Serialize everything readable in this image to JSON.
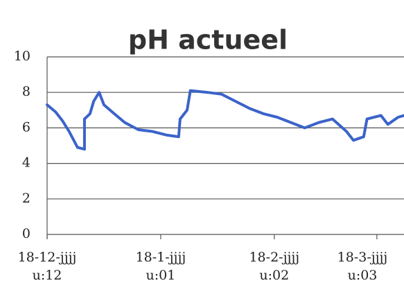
{
  "chart_data": {
    "type": "line",
    "title": "pH actueel",
    "x": [
      0,
      2.3,
      4.2,
      6.0,
      8.3,
      10.2,
      10.2,
      11.7,
      12.7,
      14.2,
      15.5,
      18.3,
      21.2,
      24.9,
      28.7,
      32.5,
      35.9,
      36.3,
      38.2,
      39.1,
      43.8,
      47.6,
      51.4,
      55.2,
      59.0,
      62.8,
      66.6,
      70.3,
      74.1,
      77.9,
      81.7,
      83.6,
      86.4,
      87.3,
      91.1,
      93.0,
      95.8,
      97.4
    ],
    "series": [
      {
        "name": "pH",
        "color": "#3b63c9",
        "values": [
          7.3,
          6.9,
          6.4,
          5.8,
          4.9,
          4.8,
          6.5,
          6.8,
          7.5,
          8.0,
          7.3,
          6.8,
          6.3,
          5.9,
          5.8,
          5.6,
          5.5,
          6.5,
          7.0,
          8.1,
          8.0,
          7.9,
          7.5,
          7.1,
          6.8,
          6.6,
          6.3,
          6.0,
          6.3,
          6.5,
          5.8,
          5.3,
          5.5,
          6.5,
          6.7,
          6.2,
          6.6,
          6.7
        ]
      }
    ],
    "xlim": [
      0,
      97.4
    ],
    "xticks": [
      {
        "value": 0,
        "label": "18-12-jjjj u:12"
      },
      {
        "value": 31,
        "label": "18-1-jjjj u:01"
      },
      {
        "value": 62,
        "label": "18-2-jjjj u:02"
      },
      {
        "value": 90,
        "label": "18-3-jjjj u:03"
      }
    ],
    "ylim": [
      0,
      10
    ],
    "yticks": [
      0,
      2,
      4,
      6,
      8,
      10
    ],
    "grid": true
  }
}
